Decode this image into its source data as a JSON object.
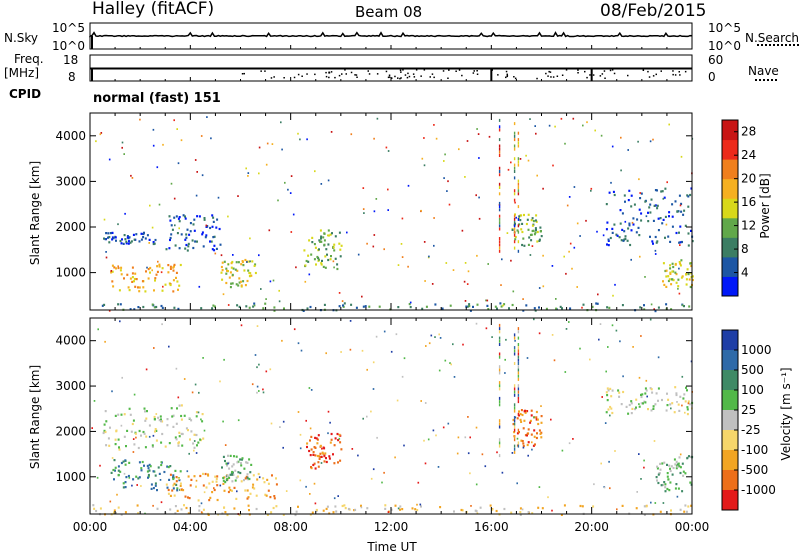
{
  "header": {
    "station": "Halley (fitACF)",
    "beam": "Beam 08",
    "date": "08/Feb/2015"
  },
  "nsky_panel": {
    "left_label": "N.Sky",
    "right_label": "N.Search",
    "left_ticks": [
      "10^5",
      "10^0"
    ],
    "right_ticks": [
      "10^5",
      "10^0"
    ]
  },
  "freq_panel": {
    "left_label_1": "Freq.",
    "left_label_2": "[MHz]",
    "right_label": "Nave",
    "left_ticks": [
      "18",
      "8"
    ],
    "right_ticks": [
      "60",
      "0"
    ]
  },
  "cpid": {
    "label": "CPID",
    "mode": "normal (fast) 151"
  },
  "chart_data": [
    {
      "type": "heatmap",
      "name_hint": "power",
      "xlabel": "",
      "ylabel": "Slant Range [km]",
      "x_ticks": [
        "00:00",
        "04:00",
        "08:00",
        "12:00",
        "16:00",
        "20:00",
        "00:00"
      ],
      "xlim_hours": [
        0,
        24
      ],
      "ylim": [
        180,
        4500
      ],
      "y_ticks": [
        1000,
        2000,
        3000,
        4000
      ],
      "colorbar": {
        "label": "Power [dB]",
        "ticks": [
          "28",
          "24",
          "20",
          "16",
          "12",
          "8",
          "4"
        ],
        "range": [
          0,
          30
        ],
        "colors": [
          "#0018f8",
          "#1c56a4",
          "#3b7d63",
          "#61a84a",
          "#d8d81a",
          "#f5b021",
          "#f07f1c",
          "#ec2a1a",
          "#c81414"
        ]
      },
      "features": [
        {
          "t0": 0.5,
          "t1": 2.6,
          "r0": 1650,
          "r1": 1900,
          "level": 1
        },
        {
          "t0": 0.8,
          "t1": 3.6,
          "r0": 600,
          "r1": 1200,
          "level": 5
        },
        {
          "t0": 3.0,
          "t1": 5.2,
          "r0": 1500,
          "r1": 2300,
          "level": 1
        },
        {
          "t0": 5.2,
          "t1": 6.6,
          "r0": 700,
          "r1": 1300,
          "level": 4
        },
        {
          "t0": 8.5,
          "t1": 10.0,
          "r0": 1100,
          "r1": 2000,
          "level": 3
        },
        {
          "t0": 16.8,
          "t1": 18.0,
          "r0": 1600,
          "r1": 2300,
          "level": 3
        },
        {
          "t0": 20.5,
          "t1": 24.0,
          "r0": 1600,
          "r1": 2900,
          "level": 1
        },
        {
          "t0": 22.8,
          "t1": 24.0,
          "r0": 700,
          "r1": 1300,
          "level": 4
        },
        {
          "t0": 0.0,
          "t1": 24.0,
          "r0": 180,
          "r1": 350,
          "level": 2
        }
      ]
    },
    {
      "type": "heatmap",
      "name_hint": "velocity",
      "xlabel": "Time UT",
      "ylabel": "Slant Range [km]",
      "x_ticks": [
        "00:00",
        "04:00",
        "08:00",
        "12:00",
        "16:00",
        "20:00",
        "00:00"
      ],
      "xlim_hours": [
        0,
        24
      ],
      "ylim": [
        180,
        4500
      ],
      "y_ticks": [
        1000,
        2000,
        3000,
        4000
      ],
      "colorbar": {
        "label": "Velocity [m s⁻¹]",
        "ticks": [
          "1000",
          "500",
          "100",
          "25",
          "-25",
          "-100",
          "-500",
          "-1000"
        ],
        "colors": [
          "#1f3ea6",
          "#2f6aa8",
          "#3f8a66",
          "#52b848",
          "#c0c0c0",
          "#f5d66b",
          "#f2a523",
          "#ed6f1a",
          "#e41a1a"
        ]
      },
      "features": [
        {
          "t0": 0.5,
          "t1": 4.5,
          "r0": 1600,
          "r1": 2600,
          "level": 4
        },
        {
          "t0": 0.8,
          "t1": 3.6,
          "r0": 700,
          "r1": 1400,
          "level": 2
        },
        {
          "t0": 3.0,
          "t1": 7.5,
          "r0": 500,
          "r1": 1100,
          "level": 6
        },
        {
          "t0": 5.2,
          "t1": 6.4,
          "r0": 900,
          "r1": 1500,
          "level": 3
        },
        {
          "t0": 8.6,
          "t1": 10.0,
          "r0": 1200,
          "r1": 2000,
          "level": 7
        },
        {
          "t0": 16.8,
          "t1": 18.0,
          "r0": 1700,
          "r1": 2500,
          "level": 7
        },
        {
          "t0": 20.5,
          "t1": 24.0,
          "r0": 2400,
          "r1": 3000,
          "level": 4
        },
        {
          "t0": 22.5,
          "t1": 24.0,
          "r0": 700,
          "r1": 1500,
          "level": 3
        },
        {
          "t0": 0.0,
          "t1": 24.0,
          "r0": 180,
          "r1": 400,
          "level": 5
        }
      ]
    }
  ]
}
